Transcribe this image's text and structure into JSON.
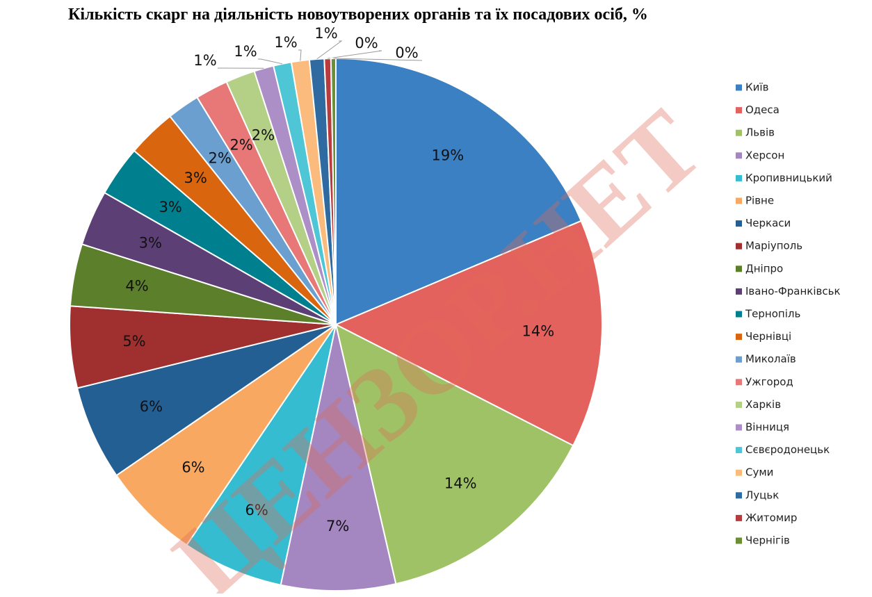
{
  "chart_data": {
    "type": "pie",
    "title": "Кількість скарг на діяльність новоутворених органів та їх посадових осіб, %",
    "watermark": "ЦЕНЗОР.НЕТ",
    "legend": "right",
    "categories": [
      "Київ",
      "Одеса",
      "Львів",
      "Херсон",
      "Кропивницький",
      "Рівне",
      "Черкаси",
      "Маріуполь",
      "Дніпро",
      "Івано-Франківськ",
      "Тернопіль",
      "Чернівці",
      "Миколаїв",
      "Ужгород",
      "Харків",
      "Вінниця",
      "Сєвєродонецьк",
      "Суми",
      "Луцьк",
      "Житомир",
      "Чернігів"
    ],
    "values": [
      18.8,
      14.0,
      14.0,
      7.0,
      6.2,
      6.0,
      5.8,
      5.0,
      3.8,
      3.4,
      3.1,
      3.0,
      2.0,
      2.0,
      1.8,
      1.2,
      1.1,
      1.1,
      0.9,
      0.4,
      0.3
    ],
    "value_labels": [
      "19%",
      "14%",
      "14%",
      "7%",
      "6%",
      "6%",
      "6%",
      "5%",
      "4%",
      "3%",
      "3%",
      "3%",
      "2%",
      "2%",
      "2%",
      "1%",
      "1%",
      "1%",
      "1%",
      "0%",
      "0%"
    ],
    "colors": [
      "#3a80c2",
      "#e4625d",
      "#9fc266",
      "#a486c0",
      "#36bcd0",
      "#f9a862",
      "#245f94",
      "#a0302f",
      "#5c7f2c",
      "#5c3f75",
      "#00808f",
      "#d9650e",
      "#6a9fd0",
      "#e87878",
      "#b3d086",
      "#ab8fc6",
      "#4fc6d6",
      "#fbbb7c",
      "#2f6aa0",
      "#b83b3e",
      "#6b8f35"
    ]
  }
}
